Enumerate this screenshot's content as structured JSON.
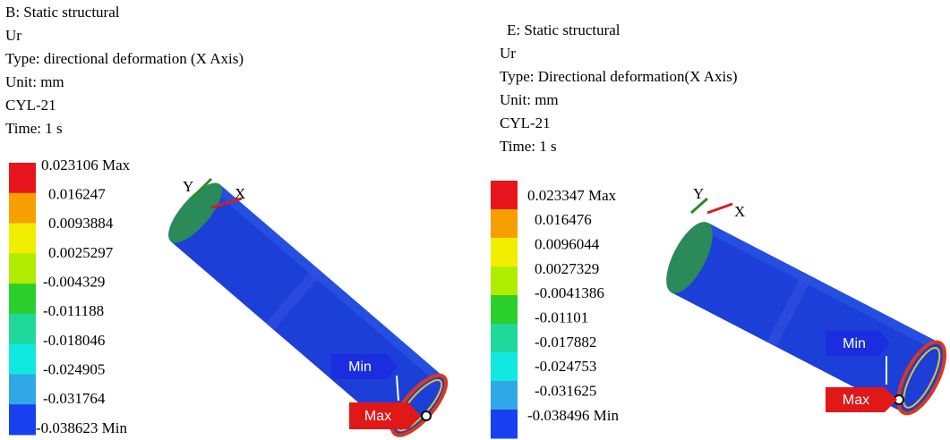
{
  "panels": [
    {
      "header": {
        "title": "B: Static structural",
        "result": "Ur",
        "type": "Type: directional deformation  (X Axis)",
        "unit": "Unit: mm",
        "body": "CYL-21",
        "time": "Time: 1 s"
      },
      "legend": [
        "0.023106 Max",
        "0.016247",
        "0.0093884",
        "0.0025297",
        "-0.004329",
        "-0.011188",
        "-0.018046",
        "-0.024905",
        "-0.031764",
        "-0.038623 Min"
      ],
      "axes": {
        "y": "Y",
        "x": "X"
      },
      "tags": {
        "min": "Min",
        "max": "Max"
      }
    },
    {
      "header": {
        "title": "E: Static structural",
        "result": "Ur",
        "type": "Type: Directional deformation(X Axis)",
        "unit": "Unit: mm",
        "body": "CYL-21",
        "time": "Time: 1 s"
      },
      "legend": [
        "0.023347 Max",
        "0.016476",
        "0.0096044",
        "0.0027329",
        "-0.0041386",
        "-0.01101",
        "-0.017882",
        "-0.024753",
        "-0.031625",
        "-0.038496 Min"
      ],
      "axes": {
        "y": "Y",
        "x": "X"
      },
      "tags": {
        "min": "Min",
        "max": "Max"
      }
    }
  ]
}
